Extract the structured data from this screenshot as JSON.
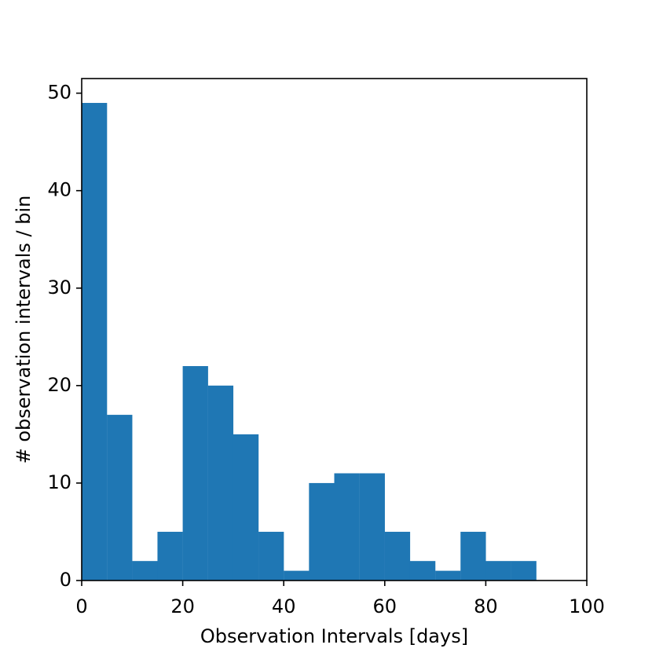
{
  "chart_data": {
    "type": "bar",
    "title": "",
    "xlabel": "Observation Intervals [days]",
    "ylabel": "# observation intervals / bin",
    "bin_width": 5,
    "bins": [
      {
        "start": 0,
        "end": 5,
        "count": 49
      },
      {
        "start": 5,
        "end": 10,
        "count": 17
      },
      {
        "start": 10,
        "end": 15,
        "count": 2
      },
      {
        "start": 15,
        "end": 20,
        "count": 5
      },
      {
        "start": 20,
        "end": 25,
        "count": 22
      },
      {
        "start": 25,
        "end": 30,
        "count": 20
      },
      {
        "start": 30,
        "end": 35,
        "count": 15
      },
      {
        "start": 35,
        "end": 40,
        "count": 5
      },
      {
        "start": 40,
        "end": 45,
        "count": 1
      },
      {
        "start": 45,
        "end": 50,
        "count": 10
      },
      {
        "start": 50,
        "end": 55,
        "count": 11
      },
      {
        "start": 55,
        "end": 60,
        "count": 11
      },
      {
        "start": 60,
        "end": 65,
        "count": 5
      },
      {
        "start": 65,
        "end": 70,
        "count": 2
      },
      {
        "start": 70,
        "end": 75,
        "count": 1
      },
      {
        "start": 75,
        "end": 80,
        "count": 5
      },
      {
        "start": 80,
        "end": 85,
        "count": 2
      },
      {
        "start": 85,
        "end": 90,
        "count": 2
      },
      {
        "start": 90,
        "end": 95,
        "count": 0
      },
      {
        "start": 95,
        "end": 100,
        "count": 0
      }
    ],
    "xlim": [
      0,
      100
    ],
    "ylim": [
      0,
      51.5
    ],
    "xticks": [
      "0",
      "20",
      "40",
      "60",
      "80",
      "100"
    ],
    "yticks": [
      "0",
      "10",
      "20",
      "30",
      "40",
      "50"
    ],
    "bar_color": "#1f77b4",
    "grid": false,
    "legend": "none"
  }
}
